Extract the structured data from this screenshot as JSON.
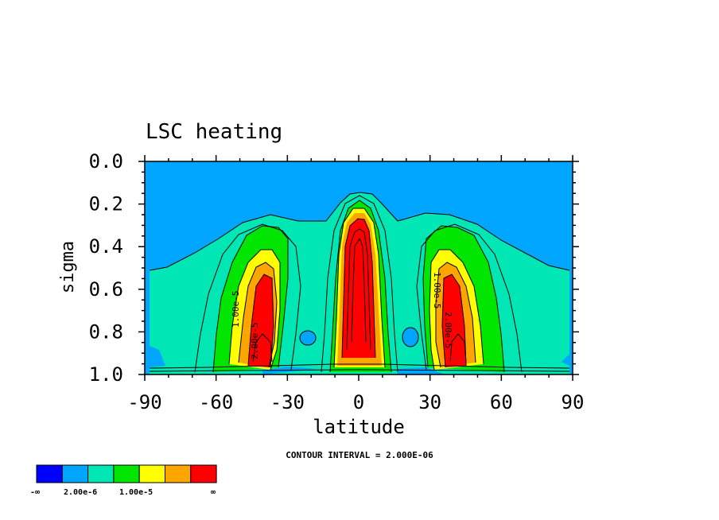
{
  "chart_data": {
    "type": "contour",
    "title": "LSC heating",
    "xlabel": "latitude",
    "ylabel": "sigma",
    "xlim": [
      -90,
      90
    ],
    "ylim": [
      1.0,
      0.0
    ],
    "y_axis_inverted": true,
    "x_ticks": [
      "-90",
      "-60",
      "-30",
      "0",
      "30",
      "60",
      "90"
    ],
    "x_tick_values": [
      -90,
      -60,
      -30,
      0,
      30,
      60,
      90
    ],
    "y_ticks": [
      "0.0",
      "0.2",
      "0.4",
      "0.6",
      "0.8",
      "1.0"
    ],
    "y_tick_values": [
      0.0,
      0.2,
      0.4,
      0.6,
      0.8,
      1.0
    ],
    "contour_interval_label": "CONTOUR INTERVAL = 2.000E-06",
    "contour_labels": [
      "1.00e-5",
      "2.00e-5",
      "1.00e-5",
      "2.00e-5"
    ],
    "heating_maxima": [
      {
        "lat": -41,
        "sigma": 0.9
      },
      {
        "lat": 0,
        "sigma": 0.5
      },
      {
        "lat": 41,
        "sigma": 0.9
      }
    ],
    "colorbar": {
      "colors": [
        "#0000ff",
        "#00a5ff",
        "#00e6b4",
        "#00e600",
        "#ffff00",
        "#ffa500",
        "#ff0000"
      ],
      "labels": [
        "-∞",
        "2.00e-6",
        "1.00e-5",
        "∞"
      ]
    }
  },
  "colors": {
    "blue": "#0000ff",
    "sky": "#00a5ff",
    "teal": "#00e6b4",
    "green": "#00e600",
    "yellow": "#ffff00",
    "orange": "#ffa500",
    "red": "#ff0000"
  }
}
